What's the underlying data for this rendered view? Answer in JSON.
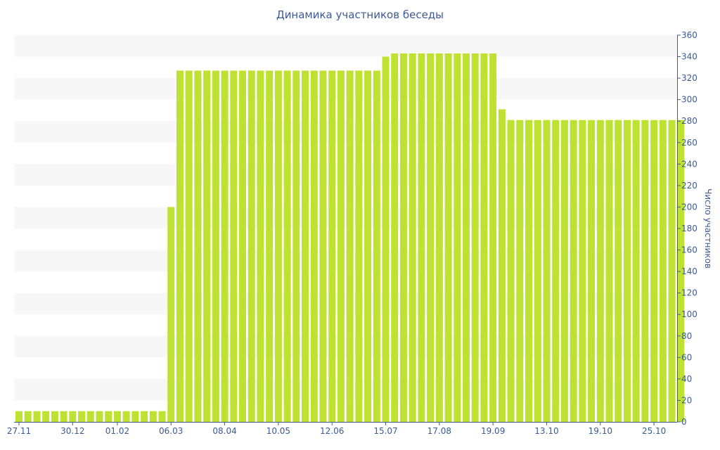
{
  "chart_data": {
    "type": "bar",
    "title": "Динамика участников беседы",
    "ylabel": "Число участников",
    "xlabel": "",
    "ylim": [
      0,
      360
    ],
    "y_ticks": [
      0,
      20,
      40,
      60,
      80,
      100,
      120,
      140,
      160,
      180,
      200,
      220,
      240,
      260,
      280,
      300,
      320,
      340,
      360
    ],
    "y_axis_side": "right",
    "grid": "alternating horizontal bands",
    "x_ticks": [
      {
        "index": 0,
        "label": "27.11"
      },
      {
        "index": 6,
        "label": "30.12"
      },
      {
        "index": 11,
        "label": "01.02"
      },
      {
        "index": 17,
        "label": "06.03"
      },
      {
        "index": 23,
        "label": "08.04"
      },
      {
        "index": 29,
        "label": "10.05"
      },
      {
        "index": 35,
        "label": "12.06"
      },
      {
        "index": 41,
        "label": "15.07"
      },
      {
        "index": 47,
        "label": "17.08"
      },
      {
        "index": 53,
        "label": "19.09"
      },
      {
        "index": 59,
        "label": "13.10"
      },
      {
        "index": 65,
        "label": "19.10"
      },
      {
        "index": 71,
        "label": "25.10"
      }
    ],
    "values": [
      10,
      10,
      10,
      10,
      10,
      10,
      10,
      10,
      10,
      10,
      10,
      10,
      10,
      10,
      10,
      10,
      10,
      200,
      327,
      327,
      327,
      327,
      327,
      327,
      327,
      327,
      327,
      327,
      327,
      327,
      327,
      327,
      327,
      327,
      327,
      327,
      327,
      327,
      327,
      327,
      327,
      340,
      343,
      343,
      343,
      343,
      343,
      343,
      343,
      343,
      343,
      343,
      343,
      343,
      291,
      281,
      281,
      281,
      281,
      281,
      281,
      281,
      281,
      281,
      281,
      281,
      281,
      281,
      281,
      281,
      281,
      281,
      281,
      281,
      281
    ],
    "colors": {
      "bar": "#bfe132",
      "band": "#f7f7f7",
      "text": "#3b5a94",
      "axis": "#3b5a94"
    }
  }
}
